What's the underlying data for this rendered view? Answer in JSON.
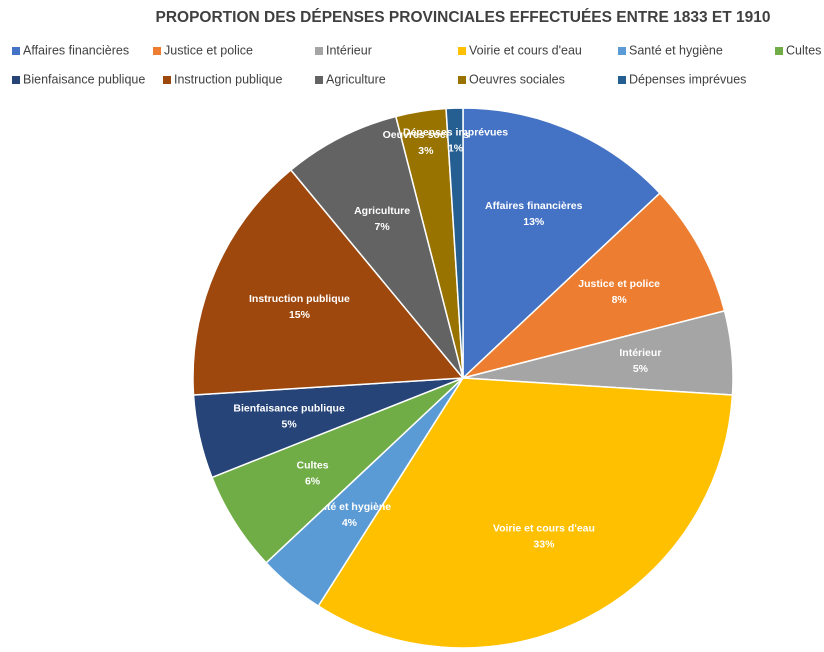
{
  "chart_data": {
    "type": "pie",
    "title": "PROPORTION DES DÉPENSES PROVINCIALES EFFECTUÉES ENTRE 1833 ET 1910",
    "categories": [
      "Affaires financières",
      "Justice et police",
      "Intérieur",
      "Voirie et cours d'eau",
      "Santé et hygiène",
      "Cultes",
      "Bienfaisance publique",
      "Instruction publique",
      "Agriculture",
      "Oeuvres sociales",
      "Dépenses imprévues"
    ],
    "values": [
      13,
      8,
      5,
      33,
      4,
      6,
      5,
      15,
      7,
      3,
      1
    ],
    "value_labels": [
      "13%",
      "8%",
      "5%",
      "33%",
      "4%",
      "6%",
      "5%",
      "15%",
      "7%",
      "3%",
      "1%"
    ],
    "colors": [
      "#4472c4",
      "#ed7d31",
      "#a5a5a5",
      "#ffc000",
      "#5b9bd5",
      "#70ad47",
      "#264478",
      "#9e480e",
      "#636363",
      "#997300",
      "#255e91"
    ],
    "legend": "top"
  }
}
